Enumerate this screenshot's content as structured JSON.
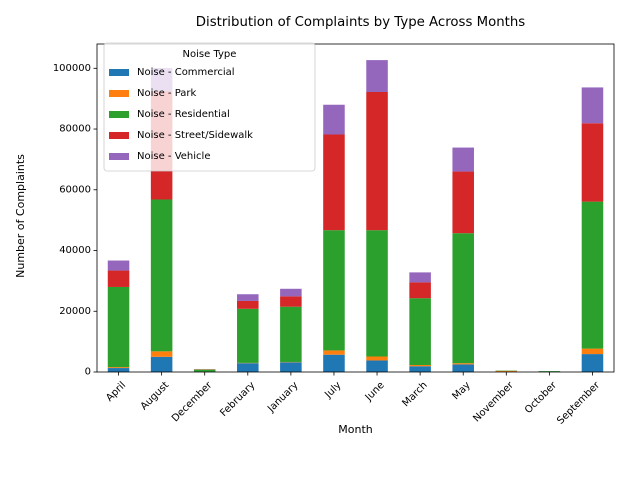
{
  "chart_data": {
    "type": "bar",
    "stacked": true,
    "title": "Distribution of Complaints by Type Across Months",
    "xlabel": "Month",
    "ylabel": "Number of Complaints",
    "ylim": [
      0,
      108000
    ],
    "yticks": [
      0,
      20000,
      40000,
      60000,
      80000,
      100000
    ],
    "ytick_labels": [
      "0",
      "20000",
      "40000",
      "60000",
      "80000",
      "100000"
    ],
    "legend_title": "Noise Type",
    "legend_position": "top-left",
    "grid": false,
    "categories": [
      "April",
      "August",
      "December",
      "February",
      "January",
      "July",
      "June",
      "March",
      "May",
      "November",
      "October",
      "September"
    ],
    "series": [
      {
        "name": "Noise - Commercial",
        "color": "#1f77b4",
        "values": [
          1300,
          5000,
          100,
          2900,
          3200,
          5700,
          3800,
          1900,
          2500,
          100,
          100,
          5900
        ]
      },
      {
        "name": "Noise - Park",
        "color": "#ff7f0e",
        "values": [
          300,
          1800,
          0,
          100,
          100,
          1400,
          1300,
          400,
          400,
          300,
          0,
          1800
        ]
      },
      {
        "name": "Noise - Residential",
        "color": "#2ca02c",
        "values": [
          26400,
          50000,
          700,
          17800,
          18200,
          39600,
          41600,
          22000,
          42800,
          100,
          200,
          48400
        ]
      },
      {
        "name": "Noise - Street/Sidewalk",
        "color": "#d62728",
        "values": [
          5400,
          35700,
          100,
          2600,
          3400,
          31500,
          45500,
          5200,
          20300,
          0,
          0,
          25800
        ]
      },
      {
        "name": "Noise - Vehicle",
        "color": "#9467bd",
        "values": [
          3300,
          7600,
          0,
          2200,
          2500,
          9800,
          10500,
          3300,
          7900,
          0,
          0,
          11800
        ]
      }
    ]
  }
}
